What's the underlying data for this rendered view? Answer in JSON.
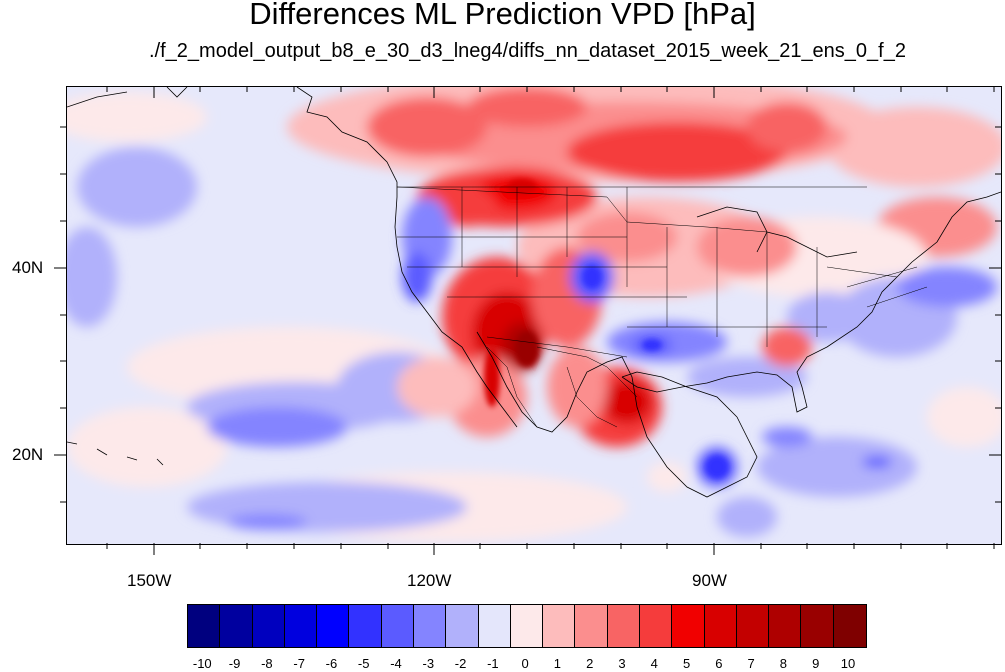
{
  "title": "Differences ML Prediction VPD [hPa]",
  "subtitle": "./f_2_model_output_b8_e_30_d3_lneg4/diffs_nn_dataset_2015_week_21_ens_0_f_2",
  "axes": {
    "lon_labels": [
      "150W",
      "120W",
      "90W"
    ],
    "lat_labels": [
      "40N",
      "20N"
    ]
  },
  "colorbar": {
    "labels": [
      "-10",
      "-9",
      "-8",
      "-7",
      "-6",
      "-5",
      "-4",
      "-3",
      "-2",
      "-1",
      "0",
      "1",
      "2",
      "3",
      "4",
      "5",
      "6",
      "7",
      "8",
      "9",
      "10"
    ],
    "colors": [
      "#00007f",
      "#00009f",
      "#0000bf",
      "#0000df",
      "#0000ff",
      "#3232ff",
      "#5b5bff",
      "#8484ff",
      "#b1b1fb",
      "#e4e6fb",
      "#fde9ea",
      "#fdbcbc",
      "#fb8e8e",
      "#f86464",
      "#f53c3c",
      "#f10000",
      "#d80000",
      "#c30000",
      "#ae0000",
      "#990000",
      "#7f0000"
    ]
  }
}
